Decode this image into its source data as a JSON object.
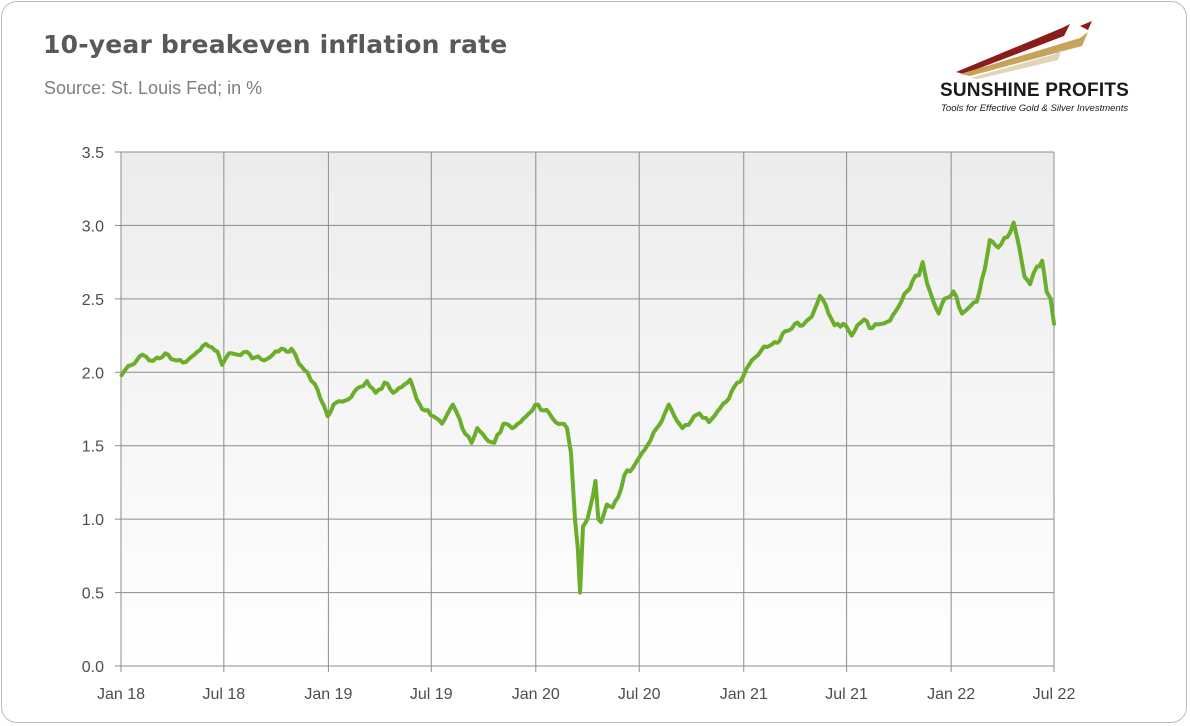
{
  "title": "10-year breakeven inflation rate",
  "subtitle": "Source: St. Louis Fed; in %",
  "logo": {
    "name": "SUNSHINE PROFITS",
    "tagline": "Tools for Effective Gold & Silver Investments"
  },
  "colors": {
    "line": "#6aae2c",
    "grid": "#8c8c8c",
    "plot_bg_top": "#ececec",
    "plot_bg_bottom": "#ffffff"
  },
  "chart_data": {
    "type": "line",
    "xlabel": "",
    "ylabel": "",
    "ylim": [
      0,
      3.5
    ],
    "yticks": [
      "0.0",
      "0.5",
      "1.0",
      "1.5",
      "2.0",
      "2.5",
      "3.0",
      "3.5"
    ],
    "xlim": [
      "2018-01",
      "2022-07"
    ],
    "xticks": [
      "Jan 18",
      "Jul 18",
      "Jan 19",
      "Jul 19",
      "Jan 20",
      "Jul 20",
      "Jan 21",
      "Jul 21",
      "Jan 22",
      "Jul 22"
    ],
    "grid": true,
    "legend": "none",
    "series": [
      {
        "points": [
          [
            "2018-01-02",
            1.98
          ],
          [
            "2018-01-20",
            2.05
          ],
          [
            "2018-02-08",
            2.12
          ],
          [
            "2018-02-20",
            2.08
          ],
          [
            "2018-03-05",
            2.1
          ],
          [
            "2018-03-25",
            2.12
          ],
          [
            "2018-04-10",
            2.08
          ],
          [
            "2018-04-25",
            2.07
          ],
          [
            "2018-05-10",
            2.12
          ],
          [
            "2018-05-25",
            2.18
          ],
          [
            "2018-06-10",
            2.17
          ],
          [
            "2018-06-20",
            2.14
          ],
          [
            "2018-06-28",
            2.05
          ],
          [
            "2018-07-10",
            2.13
          ],
          [
            "2018-07-25",
            2.12
          ],
          [
            "2018-08-10",
            2.14
          ],
          [
            "2018-08-25",
            2.1
          ],
          [
            "2018-09-10",
            2.08
          ],
          [
            "2018-09-25",
            2.12
          ],
          [
            "2018-10-10",
            2.16
          ],
          [
            "2018-10-20",
            2.14
          ],
          [
            "2018-10-28",
            2.16
          ],
          [
            "2018-11-10",
            2.06
          ],
          [
            "2018-11-25",
            2.0
          ],
          [
            "2018-12-08",
            1.92
          ],
          [
            "2018-12-18",
            1.82
          ],
          [
            "2018-12-31",
            1.7
          ],
          [
            "2019-01-10",
            1.78
          ],
          [
            "2019-01-25",
            1.8
          ],
          [
            "2019-02-10",
            1.83
          ],
          [
            "2019-02-25",
            1.9
          ],
          [
            "2019-03-10",
            1.94
          ],
          [
            "2019-03-25",
            1.86
          ],
          [
            "2019-04-10",
            1.93
          ],
          [
            "2019-04-25",
            1.86
          ],
          [
            "2019-05-10",
            1.9
          ],
          [
            "2019-05-25",
            1.95
          ],
          [
            "2019-06-05",
            1.82
          ],
          [
            "2019-06-20",
            1.74
          ],
          [
            "2019-07-05",
            1.7
          ],
          [
            "2019-07-20",
            1.65
          ],
          [
            "2019-07-30",
            1.72
          ],
          [
            "2019-08-08",
            1.78
          ],
          [
            "2019-08-20",
            1.68
          ],
          [
            "2019-08-30",
            1.58
          ],
          [
            "2019-09-10",
            1.52
          ],
          [
            "2019-09-20",
            1.62
          ],
          [
            "2019-10-05",
            1.55
          ],
          [
            "2019-10-20",
            1.52
          ],
          [
            "2019-11-05",
            1.65
          ],
          [
            "2019-11-20",
            1.62
          ],
          [
            "2019-12-05",
            1.66
          ],
          [
            "2019-12-20",
            1.72
          ],
          [
            "2020-01-05",
            1.78
          ],
          [
            "2020-01-15",
            1.74
          ],
          [
            "2020-01-25",
            1.72
          ],
          [
            "2020-02-05",
            1.66
          ],
          [
            "2020-02-15",
            1.65
          ],
          [
            "2020-02-25",
            1.62
          ],
          [
            "2020-03-03",
            1.45
          ],
          [
            "2020-03-10",
            1.0
          ],
          [
            "2020-03-15",
            0.8
          ],
          [
            "2020-03-19",
            0.5
          ],
          [
            "2020-03-24",
            0.95
          ],
          [
            "2020-04-01",
            1.0
          ],
          [
            "2020-04-10",
            1.15
          ],
          [
            "2020-04-15",
            1.26
          ],
          [
            "2020-04-20",
            1.0
          ],
          [
            "2020-04-25",
            0.98
          ],
          [
            "2020-05-05",
            1.1
          ],
          [
            "2020-05-15",
            1.08
          ],
          [
            "2020-05-25",
            1.15
          ],
          [
            "2020-06-05",
            1.3
          ],
          [
            "2020-06-20",
            1.35
          ],
          [
            "2020-07-01",
            1.42
          ],
          [
            "2020-07-15",
            1.5
          ],
          [
            "2020-08-01",
            1.62
          ],
          [
            "2020-08-15",
            1.72
          ],
          [
            "2020-08-22",
            1.78
          ],
          [
            "2020-09-01",
            1.7
          ],
          [
            "2020-09-15",
            1.62
          ],
          [
            "2020-10-01",
            1.67
          ],
          [
            "2020-10-15",
            1.72
          ],
          [
            "2020-11-01",
            1.66
          ],
          [
            "2020-11-15",
            1.73
          ],
          [
            "2020-12-01",
            1.8
          ],
          [
            "2020-12-15",
            1.9
          ],
          [
            "2021-01-01",
            1.98
          ],
          [
            "2021-01-15",
            2.08
          ],
          [
            "2021-02-01",
            2.15
          ],
          [
            "2021-02-15",
            2.18
          ],
          [
            "2021-03-01",
            2.2
          ],
          [
            "2021-03-15",
            2.28
          ],
          [
            "2021-04-01",
            2.33
          ],
          [
            "2021-04-15",
            2.32
          ],
          [
            "2021-05-01",
            2.38
          ],
          [
            "2021-05-15",
            2.52
          ],
          [
            "2021-05-25",
            2.46
          ],
          [
            "2021-06-10",
            2.32
          ],
          [
            "2021-06-25",
            2.33
          ],
          [
            "2021-07-10",
            2.25
          ],
          [
            "2021-07-20",
            2.32
          ],
          [
            "2021-08-01",
            2.36
          ],
          [
            "2021-08-15",
            2.3
          ],
          [
            "2021-09-01",
            2.33
          ],
          [
            "2021-09-15",
            2.35
          ],
          [
            "2021-10-01",
            2.45
          ],
          [
            "2021-10-15",
            2.55
          ],
          [
            "2021-10-25",
            2.62
          ],
          [
            "2021-11-05",
            2.66
          ],
          [
            "2021-11-12",
            2.75
          ],
          [
            "2021-11-20",
            2.6
          ],
          [
            "2021-12-01",
            2.48
          ],
          [
            "2021-12-10",
            2.4
          ],
          [
            "2021-12-20",
            2.5
          ],
          [
            "2022-01-05",
            2.55
          ],
          [
            "2022-01-20",
            2.4
          ],
          [
            "2022-02-01",
            2.44
          ],
          [
            "2022-02-15",
            2.48
          ],
          [
            "2022-03-01",
            2.7
          ],
          [
            "2022-03-10",
            2.9
          ],
          [
            "2022-03-25",
            2.85
          ],
          [
            "2022-04-10",
            2.92
          ],
          [
            "2022-04-21",
            3.02
          ],
          [
            "2022-05-01",
            2.85
          ],
          [
            "2022-05-10",
            2.65
          ],
          [
            "2022-05-20",
            2.6
          ],
          [
            "2022-06-01",
            2.72
          ],
          [
            "2022-06-10",
            2.76
          ],
          [
            "2022-06-18",
            2.55
          ],
          [
            "2022-06-25",
            2.5
          ],
          [
            "2022-07-01",
            2.33
          ]
        ]
      }
    ]
  }
}
